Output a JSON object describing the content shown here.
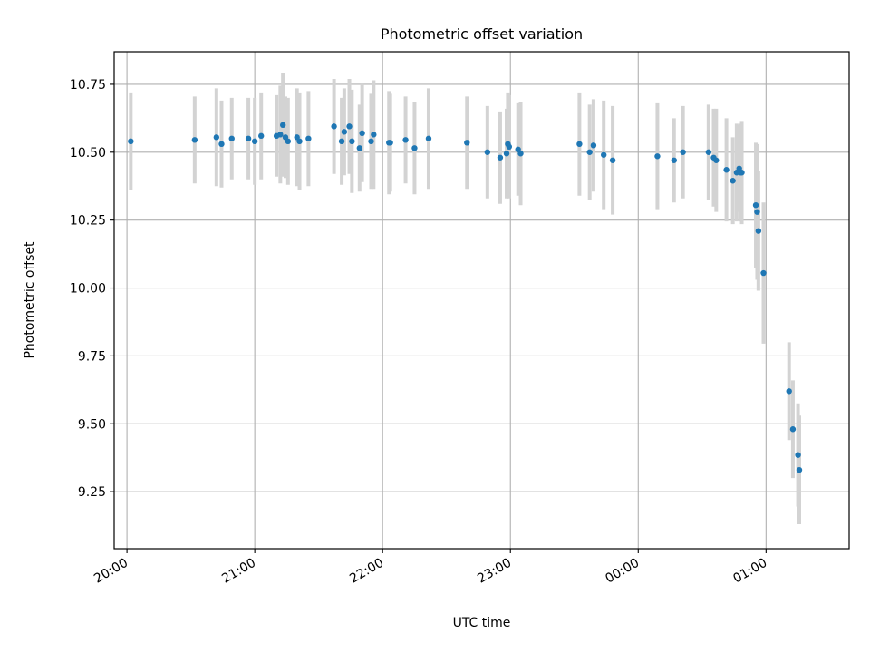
{
  "chart_data": {
    "type": "scatter",
    "title": "Photometric offset variation",
    "xlabel": "UTC time",
    "ylabel": "Photometric offset",
    "grid": true,
    "xlim": [
      -0.1,
      5.65
    ],
    "ylim": [
      9.04,
      10.87
    ],
    "x_ticks": [
      {
        "value": 0,
        "label": "20:00"
      },
      {
        "value": 1,
        "label": "21:00"
      },
      {
        "value": 2,
        "label": "22:00"
      },
      {
        "value": 3,
        "label": "23:00"
      },
      {
        "value": 4,
        "label": "00:00"
      },
      {
        "value": 5,
        "label": "01:00"
      }
    ],
    "y_ticks": [
      {
        "value": 9.25,
        "label": "9.25"
      },
      {
        "value": 9.5,
        "label": "9.50"
      },
      {
        "value": 9.75,
        "label": "9.75"
      },
      {
        "value": 10.0,
        "label": "10.00"
      },
      {
        "value": 10.25,
        "label": "10.25"
      },
      {
        "value": 10.5,
        "label": "10.50"
      },
      {
        "value": 10.75,
        "label": "10.75"
      }
    ],
    "colors": {
      "points": "#1f77b4",
      "errorbars": "#d3d3d3",
      "grid": "#b0b0b0"
    },
    "series": [
      {
        "x_unit": "hours after 20:00 UTC",
        "x": [
          0.03,
          0.53,
          0.7,
          0.74,
          0.82,
          0.95,
          1.0,
          1.05,
          1.17,
          1.2,
          1.22,
          1.24,
          1.26,
          1.33,
          1.35,
          1.42,
          1.62,
          1.68,
          1.7,
          1.74,
          1.76,
          1.82,
          1.84,
          1.91,
          1.93,
          2.05,
          2.06,
          2.18,
          2.25,
          2.36,
          2.66,
          2.82,
          2.92,
          2.97,
          2.98,
          2.99,
          3.06,
          3.08,
          3.54,
          3.62,
          3.65,
          3.73,
          3.8,
          4.15,
          4.28,
          4.35,
          4.55,
          4.59,
          4.61,
          4.69,
          4.74,
          4.77,
          4.79,
          4.8,
          4.81,
          4.92,
          4.93,
          4.94,
          4.98,
          5.18,
          5.21,
          5.25,
          5.26
        ],
        "y": [
          10.54,
          10.545,
          10.555,
          10.53,
          10.55,
          10.55,
          10.54,
          10.56,
          10.56,
          10.565,
          10.6,
          10.555,
          10.54,
          10.555,
          10.54,
          10.55,
          10.595,
          10.54,
          10.575,
          10.595,
          10.54,
          10.515,
          10.57,
          10.54,
          10.565,
          10.535,
          10.535,
          10.545,
          10.515,
          10.55,
          10.535,
          10.5,
          10.48,
          10.495,
          10.53,
          10.52,
          10.51,
          10.495,
          10.53,
          10.5,
          10.525,
          10.49,
          10.47,
          10.485,
          10.47,
          10.5,
          10.5,
          10.48,
          10.47,
          10.435,
          10.395,
          10.425,
          10.44,
          10.425,
          10.425,
          10.305,
          10.28,
          10.21,
          10.055,
          9.62,
          9.48,
          9.385,
          9.33
        ],
        "err": [
          0.18,
          0.16,
          0.18,
          0.16,
          0.15,
          0.15,
          0.16,
          0.16,
          0.15,
          0.18,
          0.19,
          0.15,
          0.16,
          0.18,
          0.18,
          0.175,
          0.175,
          0.16,
          0.16,
          0.175,
          0.19,
          0.16,
          0.18,
          0.175,
          0.2,
          0.19,
          0.18,
          0.16,
          0.17,
          0.185,
          0.17,
          0.17,
          0.17,
          0.165,
          0.19,
          0.19,
          0.17,
          0.19,
          0.19,
          0.175,
          0.17,
          0.2,
          0.2,
          0.195,
          0.155,
          0.17,
          0.175,
          0.18,
          0.19,
          0.19,
          0.16,
          0.18,
          0.16,
          0.18,
          0.19,
          0.23,
          0.25,
          0.22,
          0.26,
          0.18,
          0.18,
          0.19,
          0.2
        ]
      }
    ]
  }
}
